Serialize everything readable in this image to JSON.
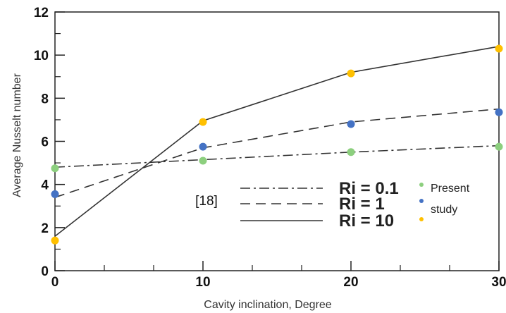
{
  "chart_data": {
    "type": "line",
    "xlabel": "Cavity inclination, Degree",
    "ylabel": "Average Nusselt number",
    "xlim": [
      0,
      30
    ],
    "ylim": [
      0,
      12
    ],
    "x_ticks": [
      "0",
      "10",
      "20",
      "30"
    ],
    "y_ticks": [
      "0",
      "2",
      "4",
      "6",
      "8",
      "10",
      "12"
    ],
    "grid": false,
    "reference_label": "[18]",
    "present_study_label_1": "Present",
    "present_study_label_2": "study",
    "series": [
      {
        "name": "Ri = 0.1",
        "style": "dash-dot",
        "color": "#8ccf7e",
        "line_x": [
          0,
          10,
          20,
          30
        ],
        "line_y": [
          4.8,
          5.15,
          5.5,
          5.8
        ],
        "points_x": [
          0,
          10,
          20,
          30
        ],
        "points_y": [
          4.75,
          5.1,
          5.5,
          5.75
        ]
      },
      {
        "name": "Ri = 1",
        "style": "dashed",
        "color": "#4472c4",
        "line_x": [
          0,
          10,
          20,
          30
        ],
        "line_y": [
          3.4,
          5.7,
          6.9,
          7.5
        ],
        "points_x": [
          0,
          10,
          20,
          30
        ],
        "points_y": [
          3.55,
          5.75,
          6.8,
          7.35
        ]
      },
      {
        "name": "Ri = 10",
        "style": "solid",
        "color": "#ffc000",
        "line_x": [
          0,
          10,
          20,
          30
        ],
        "line_y": [
          1.6,
          6.95,
          9.2,
          10.4
        ],
        "points_x": [
          0,
          10,
          20,
          30
        ],
        "points_y": [
          1.4,
          6.9,
          9.15,
          10.3
        ]
      }
    ]
  }
}
